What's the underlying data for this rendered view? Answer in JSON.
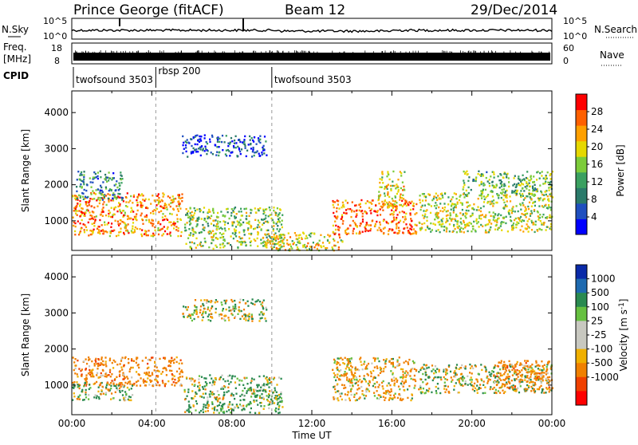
{
  "header": {
    "title": "Prince George (fitACF)",
    "beam": "Beam 12",
    "date": "29/Dec/2014"
  },
  "top_panels": {
    "nsky_label": "N.Sky",
    "nsearch_label": "N.Search",
    "freq_label_1": "Freq.",
    "freq_label_2": "[MHz]",
    "nave_label": "Nave",
    "cpid_label": "CPID",
    "nsky_ticks": [
      "10^5",
      "10^0"
    ],
    "nsearch_ticks": [
      "10^5",
      "10^0"
    ],
    "freq_ticks": [
      "18",
      "8"
    ],
    "nave_ticks": [
      "60",
      "0"
    ],
    "cpid_segments": [
      {
        "start_h": 0,
        "label": "twofsound 3503"
      },
      {
        "start_h": 4.2,
        "label": "rbsp 200"
      },
      {
        "start_h": 10,
        "label": "twofsound 3503"
      }
    ]
  },
  "colors": {
    "power_scale": [
      "#0000ff",
      "#1f4fbf",
      "#2a7a6a",
      "#3aa060",
      "#7ccc3a",
      "#e6d800",
      "#ffa000",
      "#ff6000",
      "#ff0000"
    ],
    "velocity_scale": [
      "#0a2aa8",
      "#1e6ab0",
      "#2a8a50",
      "#66c040",
      "#c8c8c0",
      "#c8c8c0",
      "#f0b000",
      "#f08000",
      "#f04000",
      "#ff0000"
    ]
  },
  "chart_data": [
    {
      "type": "heatmap",
      "quantity": "Power",
      "ylabel": "Slant Range [km]",
      "xlim": [
        0,
        24
      ],
      "ylim": [
        180,
        4600
      ],
      "yticks": [
        "1000",
        "2000",
        "3000",
        "4000"
      ],
      "colorbar_label": "Power [dB]",
      "colorbar_ticks": [
        "4",
        "8",
        "12",
        "16",
        "20",
        "24",
        "28"
      ],
      "colorbar_range": [
        0,
        32
      ],
      "echo_regions": [
        {
          "t0": 0.0,
          "t1": 5.5,
          "r0": 600,
          "r1": 1800,
          "value": 24
        },
        {
          "t0": 0.2,
          "t1": 2.5,
          "r0": 1600,
          "r1": 2400,
          "value": 10
        },
        {
          "t0": 5.6,
          "t1": 10.5,
          "r0": 250,
          "r1": 1400,
          "value": 16
        },
        {
          "t0": 5.5,
          "t1": 9.7,
          "r0": 2800,
          "r1": 3400,
          "value": 6
        },
        {
          "t0": 9.5,
          "t1": 13.5,
          "r0": 200,
          "r1": 700,
          "value": 20
        },
        {
          "t0": 13.0,
          "t1": 17.2,
          "r0": 650,
          "r1": 1600,
          "value": 26
        },
        {
          "t0": 15.3,
          "t1": 16.6,
          "r0": 1400,
          "r1": 2400,
          "value": 20
        },
        {
          "t0": 17.3,
          "t1": 24.0,
          "r0": 700,
          "r1": 1800,
          "value": 18
        },
        {
          "t0": 19.5,
          "t1": 24.0,
          "r0": 1700,
          "r1": 2400,
          "value": 14
        }
      ]
    },
    {
      "type": "heatmap",
      "quantity": "Velocity",
      "ylabel": "Slant Range [km]",
      "xlabel": "Time UT",
      "xlim": [
        0,
        24
      ],
      "ylim": [
        180,
        4600
      ],
      "yticks": [
        "1000",
        "2000",
        "3000",
        "4000"
      ],
      "xticks": [
        "00:00",
        "04:00",
        "08:00",
        "12:00",
        "16:00",
        "20:00",
        "00:00"
      ],
      "colorbar_label": "Velocity [m s^-1]",
      "colorbar_ticks": [
        "1000",
        "500",
        "100",
        "25",
        "-25",
        "-100",
        "-500",
        "-1000"
      ],
      "echo_regions": [
        {
          "t0": 0.0,
          "t1": 5.5,
          "r0": 1000,
          "r1": 1800,
          "value": -300
        },
        {
          "t0": 0.0,
          "t1": 3.0,
          "r0": 600,
          "r1": 1100,
          "value": 80
        },
        {
          "t0": 5.6,
          "t1": 10.5,
          "r0": 250,
          "r1": 1300,
          "value": 120
        },
        {
          "t0": 5.5,
          "t1": 9.7,
          "r0": 2800,
          "r1": 3400,
          "value": 0
        },
        {
          "t0": 13.0,
          "t1": 17.2,
          "r0": 600,
          "r1": 1800,
          "value": -150
        },
        {
          "t0": 17.3,
          "t1": 24.0,
          "r0": 800,
          "r1": 1600,
          "value": 0
        },
        {
          "t0": 21.0,
          "t1": 24.0,
          "r0": 900,
          "r1": 1700,
          "value": -250
        }
      ]
    }
  ]
}
